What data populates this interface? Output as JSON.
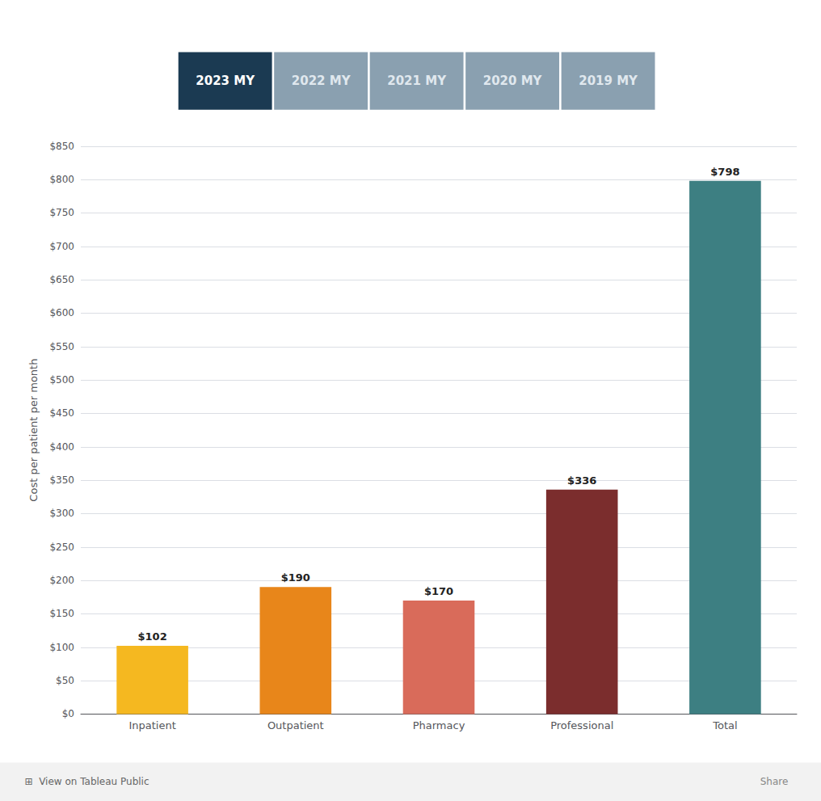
{
  "chart_data": {
    "type": "bar",
    "categories": [
      "Inpatient",
      "Outpatient",
      "Pharmacy",
      "Professional",
      "Total"
    ],
    "values": [
      102,
      190,
      170,
      336,
      798
    ],
    "value_labels": [
      "$102",
      "$190",
      "$170",
      "$336",
      "$798"
    ],
    "data_labels": true,
    "colors": [
      "#F5B820",
      "#E8861A",
      "#D96B5A",
      "#7B2D2D",
      "#3D7F82"
    ],
    "ylabel": "Cost per patient per month",
    "ylim": [
      0,
      850
    ],
    "yticks": [
      {
        "value": 0,
        "label": "$0"
      },
      {
        "value": 50,
        "label": "$50"
      },
      {
        "value": 100,
        "label": "$100"
      },
      {
        "value": 150,
        "label": "$150"
      },
      {
        "value": 200,
        "label": "$200"
      },
      {
        "value": 250,
        "label": "$250"
      },
      {
        "value": 300,
        "label": "$300"
      },
      {
        "value": 350,
        "label": "$350"
      },
      {
        "value": 400,
        "label": "$400"
      },
      {
        "value": 450,
        "label": "$450"
      },
      {
        "value": 500,
        "label": "$500"
      },
      {
        "value": 550,
        "label": "$550"
      },
      {
        "value": 600,
        "label": "$600"
      },
      {
        "value": 650,
        "label": "$650"
      },
      {
        "value": 700,
        "label": "$700"
      },
      {
        "value": 750,
        "label": "$750"
      },
      {
        "value": 800,
        "label": "$800"
      },
      {
        "value": 850,
        "label": "$850"
      }
    ],
    "grid": true,
    "annotations": [
      "2023 MY",
      "2022 MY",
      "2021 MY",
      "2020 MY",
      "2019 MY",
      "⊞  View on Tableau Public",
      "Share"
    ]
  }
}
